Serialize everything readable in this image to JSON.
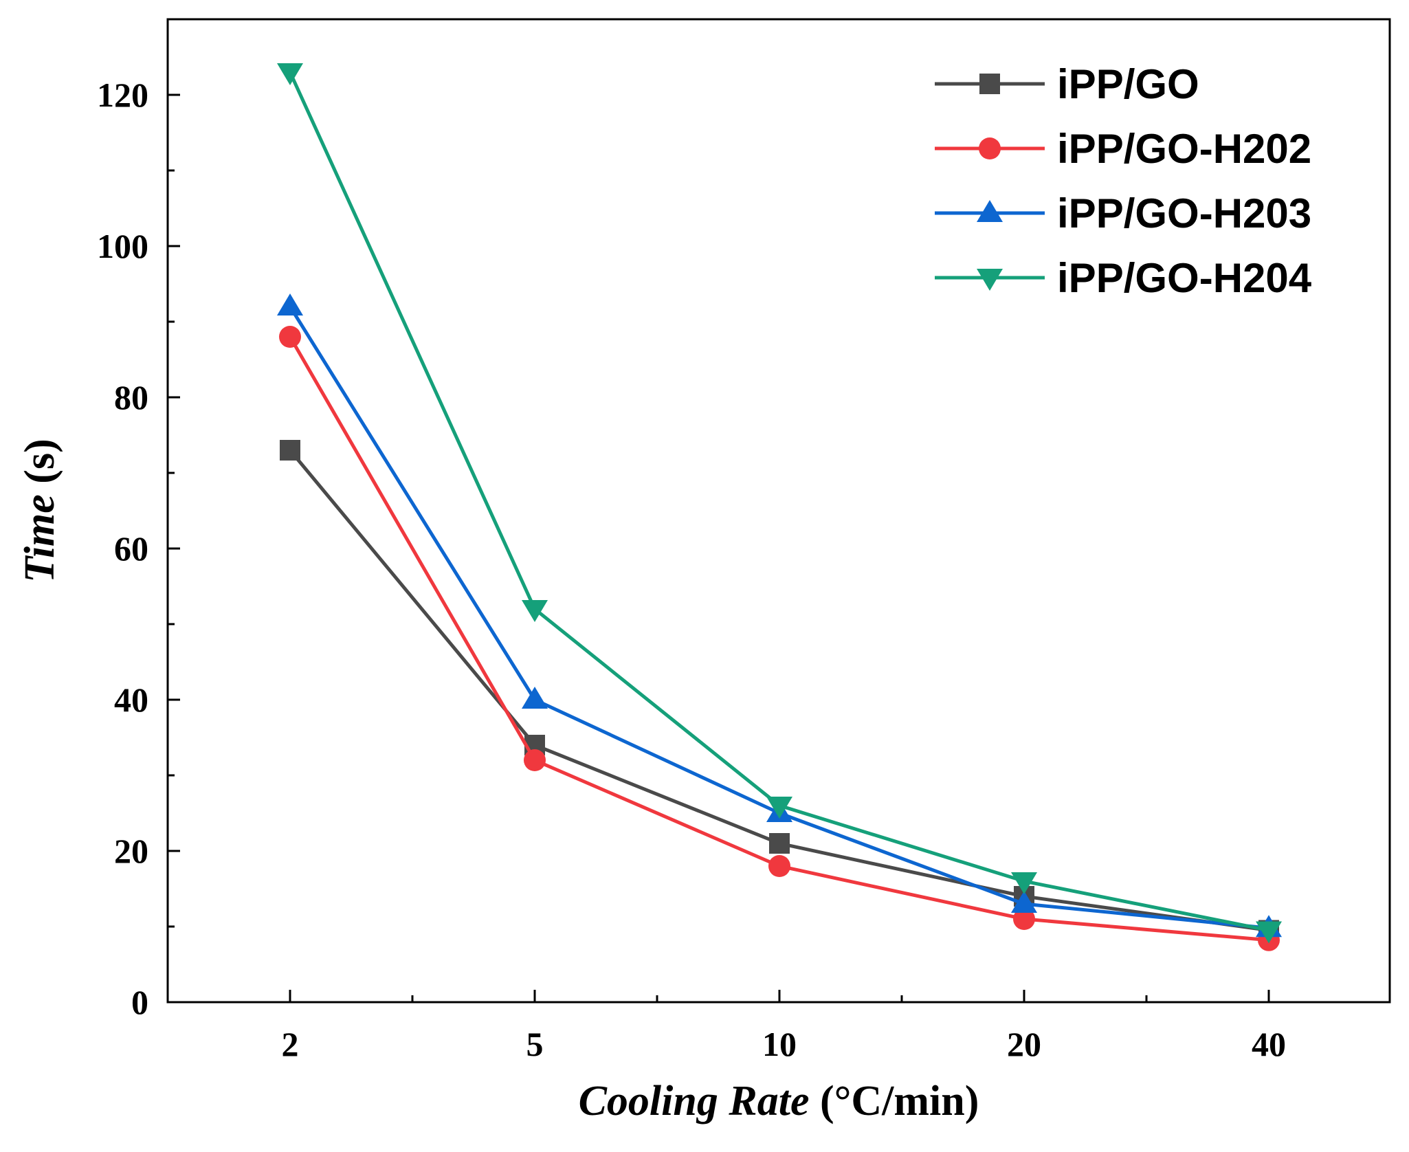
{
  "chart_data": {
    "type": "line",
    "title": "",
    "xlabel": {
      "italic": "Cooling Rate",
      "plain": " (°C/min)"
    },
    "ylabel": {
      "italic": "Time",
      "plain": " (s)"
    },
    "categories": [
      "2",
      "5",
      "10",
      "20",
      "40"
    ],
    "ylim": [
      0,
      130
    ],
    "y_ticks": [
      0,
      20,
      40,
      60,
      80,
      100,
      120
    ],
    "y_tick_labels": [
      "0",
      "20",
      "40",
      "60",
      "80",
      "100",
      "120"
    ],
    "y_minor_step": 10,
    "grid": false,
    "legend_position": "top-right",
    "series": [
      {
        "name": "iPP/GO",
        "color": "#4a4a4a",
        "marker": "square",
        "values": [
          73,
          34,
          21,
          14,
          9.5
        ]
      },
      {
        "name": "iPP/GO-H202",
        "color": "#f0383e",
        "marker": "circle",
        "values": [
          88,
          32,
          18,
          11,
          8.2
        ]
      },
      {
        "name": "iPP/GO-H203",
        "color": "#0d66d0",
        "marker": "triangle-up",
        "values": [
          92,
          40,
          25,
          13,
          9.8
        ]
      },
      {
        "name": "iPP/GO-H204",
        "color": "#15a07a",
        "marker": "triangle-down",
        "values": [
          123,
          52,
          26,
          16,
          9.5
        ]
      }
    ]
  }
}
